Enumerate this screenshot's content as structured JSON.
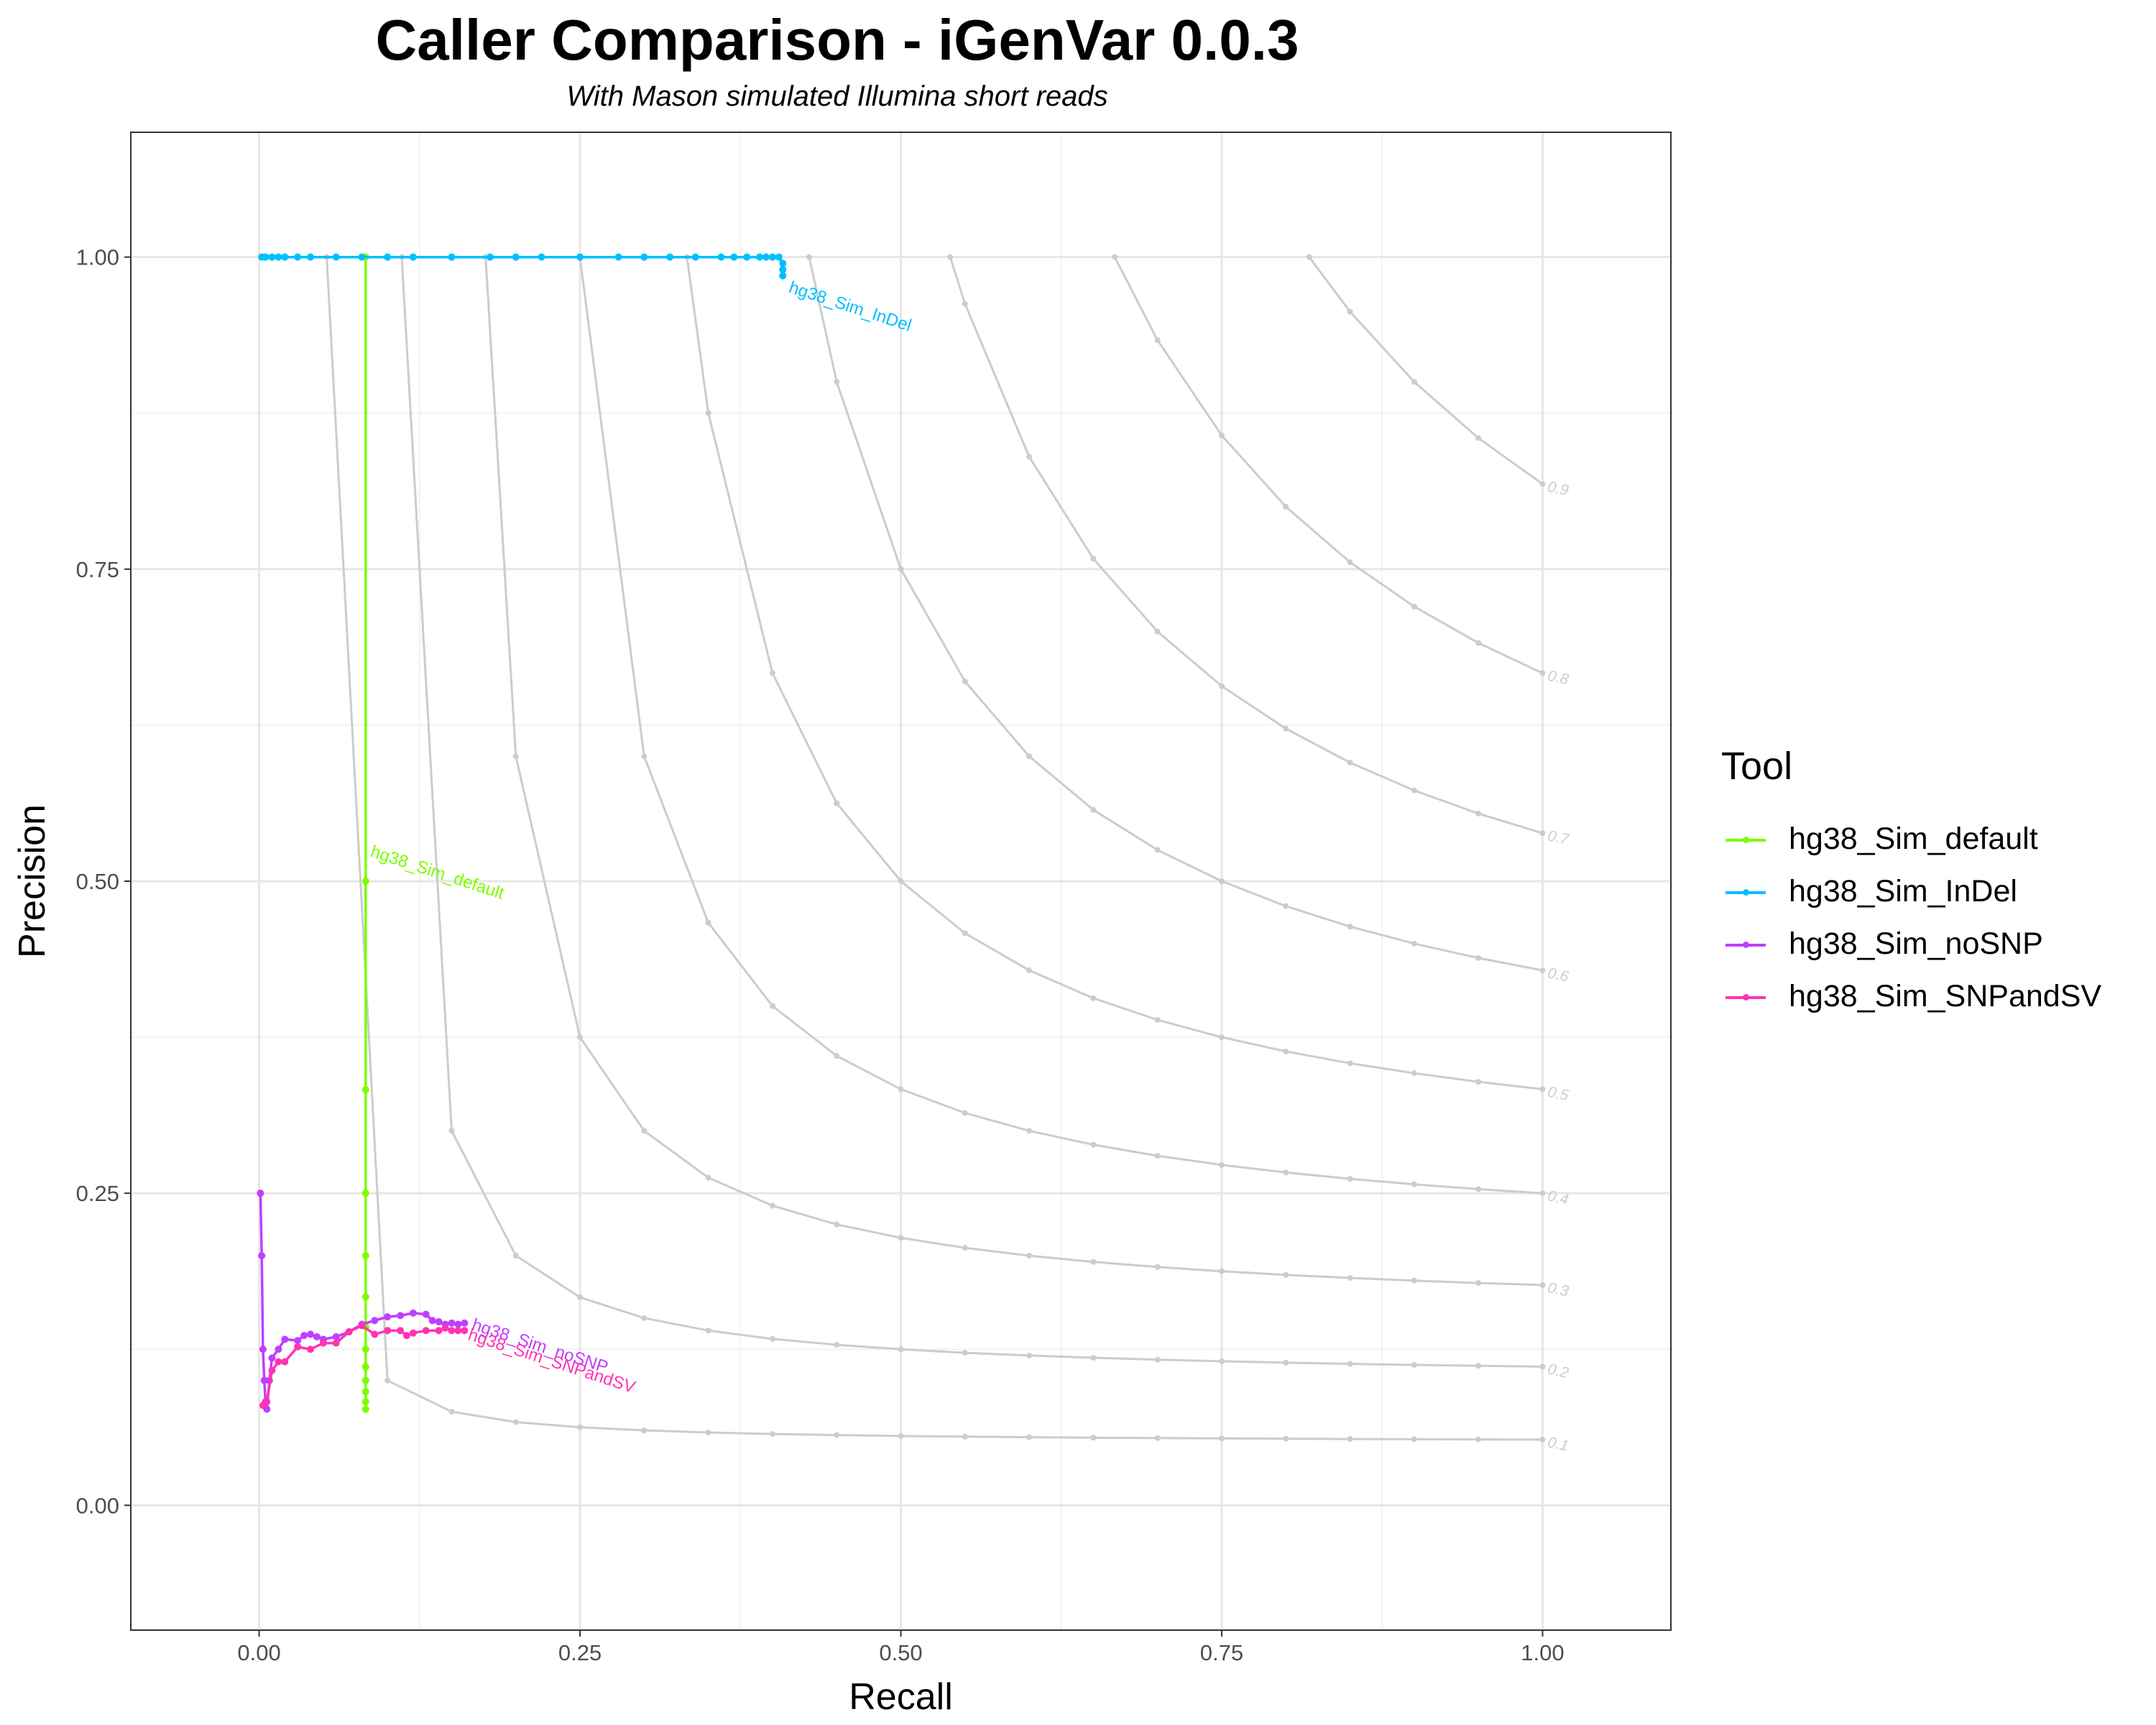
{
  "chart_data": {
    "type": "line",
    "title": "Caller Comparison - iGenVar 0.0.3",
    "subtitle": "With Mason simulated Illumina short reads",
    "xlabel": "Recall",
    "ylabel": "Precision",
    "xlim": [
      -0.1,
      2.2
    ],
    "ylim": [
      -0.1,
      2.0
    ],
    "x_ticks": [
      "0.00",
      "0.25",
      "0.50",
      "0.75",
      "1.00"
    ],
    "y_ticks": [
      "0.00",
      "0.25",
      "0.50",
      "0.75",
      "1.00"
    ],
    "grid": true,
    "legend": {
      "title": "Tool",
      "position": "right"
    },
    "iso_f1_curves": {
      "color": "#cccccc",
      "labels": [
        "0.1",
        "0.2",
        "0.3",
        "0.4",
        "0.5",
        "0.6",
        "0.7",
        "0.8",
        "0.9"
      ]
    },
    "series": [
      {
        "name": "hg38_Sim_default",
        "color": "#7CFC00",
        "points": [
          [
            0.083,
            1.0
          ],
          [
            0.083,
            0.5
          ],
          [
            0.083,
            0.333
          ],
          [
            0.083,
            0.25
          ],
          [
            0.083,
            0.2
          ],
          [
            0.083,
            0.167
          ],
          [
            0.083,
            0.143
          ],
          [
            0.083,
            0.125
          ],
          [
            0.083,
            0.111
          ],
          [
            0.083,
            0.1
          ],
          [
            0.083,
            0.091
          ],
          [
            0.083,
            0.083
          ],
          [
            0.083,
            0.077
          ]
        ]
      },
      {
        "name": "hg38_Sim_InDel",
        "color": "#00BFFF",
        "points": [
          [
            0.002,
            1.0
          ],
          [
            0.005,
            1.0
          ],
          [
            0.01,
            1.0
          ],
          [
            0.015,
            1.0
          ],
          [
            0.02,
            1.0
          ],
          [
            0.03,
            1.0
          ],
          [
            0.04,
            1.0
          ],
          [
            0.06,
            1.0
          ],
          [
            0.08,
            1.0
          ],
          [
            0.1,
            1.0
          ],
          [
            0.12,
            1.0
          ],
          [
            0.15,
            1.0
          ],
          [
            0.18,
            1.0
          ],
          [
            0.2,
            1.0
          ],
          [
            0.22,
            1.0
          ],
          [
            0.25,
            1.0
          ],
          [
            0.28,
            1.0
          ],
          [
            0.3,
            1.0
          ],
          [
            0.32,
            1.0
          ],
          [
            0.34,
            1.0
          ],
          [
            0.36,
            1.0
          ],
          [
            0.37,
            1.0
          ],
          [
            0.38,
            1.0
          ],
          [
            0.39,
            1.0
          ],
          [
            0.395,
            1.0
          ],
          [
            0.4,
            1.0
          ],
          [
            0.405,
            1.0
          ],
          [
            0.408,
            0.995
          ],
          [
            0.408,
            0.99
          ],
          [
            0.408,
            0.985
          ]
        ]
      },
      {
        "name": "hg38_Sim_noSNP",
        "color": "#BF3EFF",
        "points": [
          [
            0.001,
            0.25
          ],
          [
            0.002,
            0.2
          ],
          [
            0.003,
            0.125
          ],
          [
            0.004,
            0.1
          ],
          [
            0.005,
            0.083
          ],
          [
            0.006,
            0.077
          ],
          [
            0.008,
            0.1
          ],
          [
            0.01,
            0.118
          ],
          [
            0.015,
            0.125
          ],
          [
            0.02,
            0.133
          ],
          [
            0.03,
            0.132
          ],
          [
            0.035,
            0.136
          ],
          [
            0.04,
            0.137
          ],
          [
            0.045,
            0.135
          ],
          [
            0.05,
            0.133
          ],
          [
            0.06,
            0.135
          ],
          [
            0.07,
            0.139
          ],
          [
            0.08,
            0.145
          ],
          [
            0.09,
            0.148
          ],
          [
            0.1,
            0.151
          ],
          [
            0.11,
            0.152
          ],
          [
            0.12,
            0.154
          ],
          [
            0.13,
            0.153
          ],
          [
            0.135,
            0.148
          ],
          [
            0.14,
            0.147
          ],
          [
            0.145,
            0.145
          ],
          [
            0.15,
            0.146
          ],
          [
            0.155,
            0.145
          ],
          [
            0.16,
            0.146
          ]
        ]
      },
      {
        "name": "hg38_Sim_SNPandSV",
        "color": "#FF34B3",
        "points": [
          [
            0.003,
            0.08
          ],
          [
            0.006,
            0.083
          ],
          [
            0.01,
            0.108
          ],
          [
            0.015,
            0.115
          ],
          [
            0.02,
            0.115
          ],
          [
            0.03,
            0.127
          ],
          [
            0.04,
            0.125
          ],
          [
            0.05,
            0.13
          ],
          [
            0.06,
            0.13
          ],
          [
            0.07,
            0.139
          ],
          [
            0.08,
            0.144
          ],
          [
            0.09,
            0.137
          ],
          [
            0.1,
            0.14
          ],
          [
            0.11,
            0.14
          ],
          [
            0.115,
            0.136
          ],
          [
            0.12,
            0.138
          ],
          [
            0.13,
            0.14
          ],
          [
            0.14,
            0.14
          ],
          [
            0.145,
            0.142
          ],
          [
            0.15,
            0.14
          ],
          [
            0.155,
            0.14
          ],
          [
            0.16,
            0.14
          ]
        ]
      }
    ],
    "annotations": [
      "hg38_Sim_default",
      "hg38_Sim_InDel",
      "hg38_Sim_noSNP",
      "hg38_Sim_SNPandSV"
    ]
  }
}
